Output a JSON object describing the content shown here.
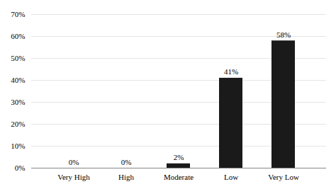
{
  "chart_data": {
    "type": "bar",
    "categories": [
      "Very High",
      "High",
      "Moderate",
      "Low",
      "Very Low"
    ],
    "values": [
      0,
      0,
      2,
      41,
      58
    ],
    "value_labels": [
      "0%",
      "0%",
      "2%",
      "41%",
      "58%"
    ],
    "data_labels": true,
    "color": "#1a1a1a",
    "ylim": [
      0,
      70
    ],
    "yticks": [
      {
        "value": 0,
        "label": "0%"
      },
      {
        "value": 10,
        "label": "10%"
      },
      {
        "value": 20,
        "label": "20%"
      },
      {
        "value": 30,
        "label": "30%"
      },
      {
        "value": 40,
        "label": "40%"
      },
      {
        "value": 50,
        "label": "50%"
      },
      {
        "value": 60,
        "label": "60%"
      },
      {
        "value": 70,
        "label": "70%"
      }
    ],
    "grid": true
  }
}
